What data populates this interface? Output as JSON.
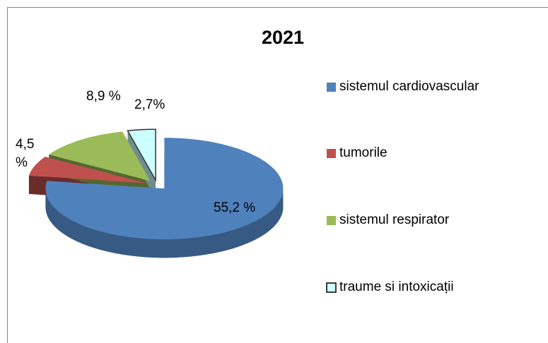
{
  "chart_data": {
    "type": "pie3d",
    "title": "2021",
    "labels": [
      "sistemul cardiovascular",
      "tumorile",
      "sistemul respirator",
      "traume si intoxicații"
    ],
    "values": [
      55.2,
      4.5,
      8.9,
      2.7
    ],
    "value_labels": [
      "55,2 %",
      "4,5 %",
      "8,9 %",
      "2,7%"
    ],
    "colors": [
      "#4f81bd",
      "#c0504d",
      "#9bbb59",
      "#ccffff"
    ]
  }
}
